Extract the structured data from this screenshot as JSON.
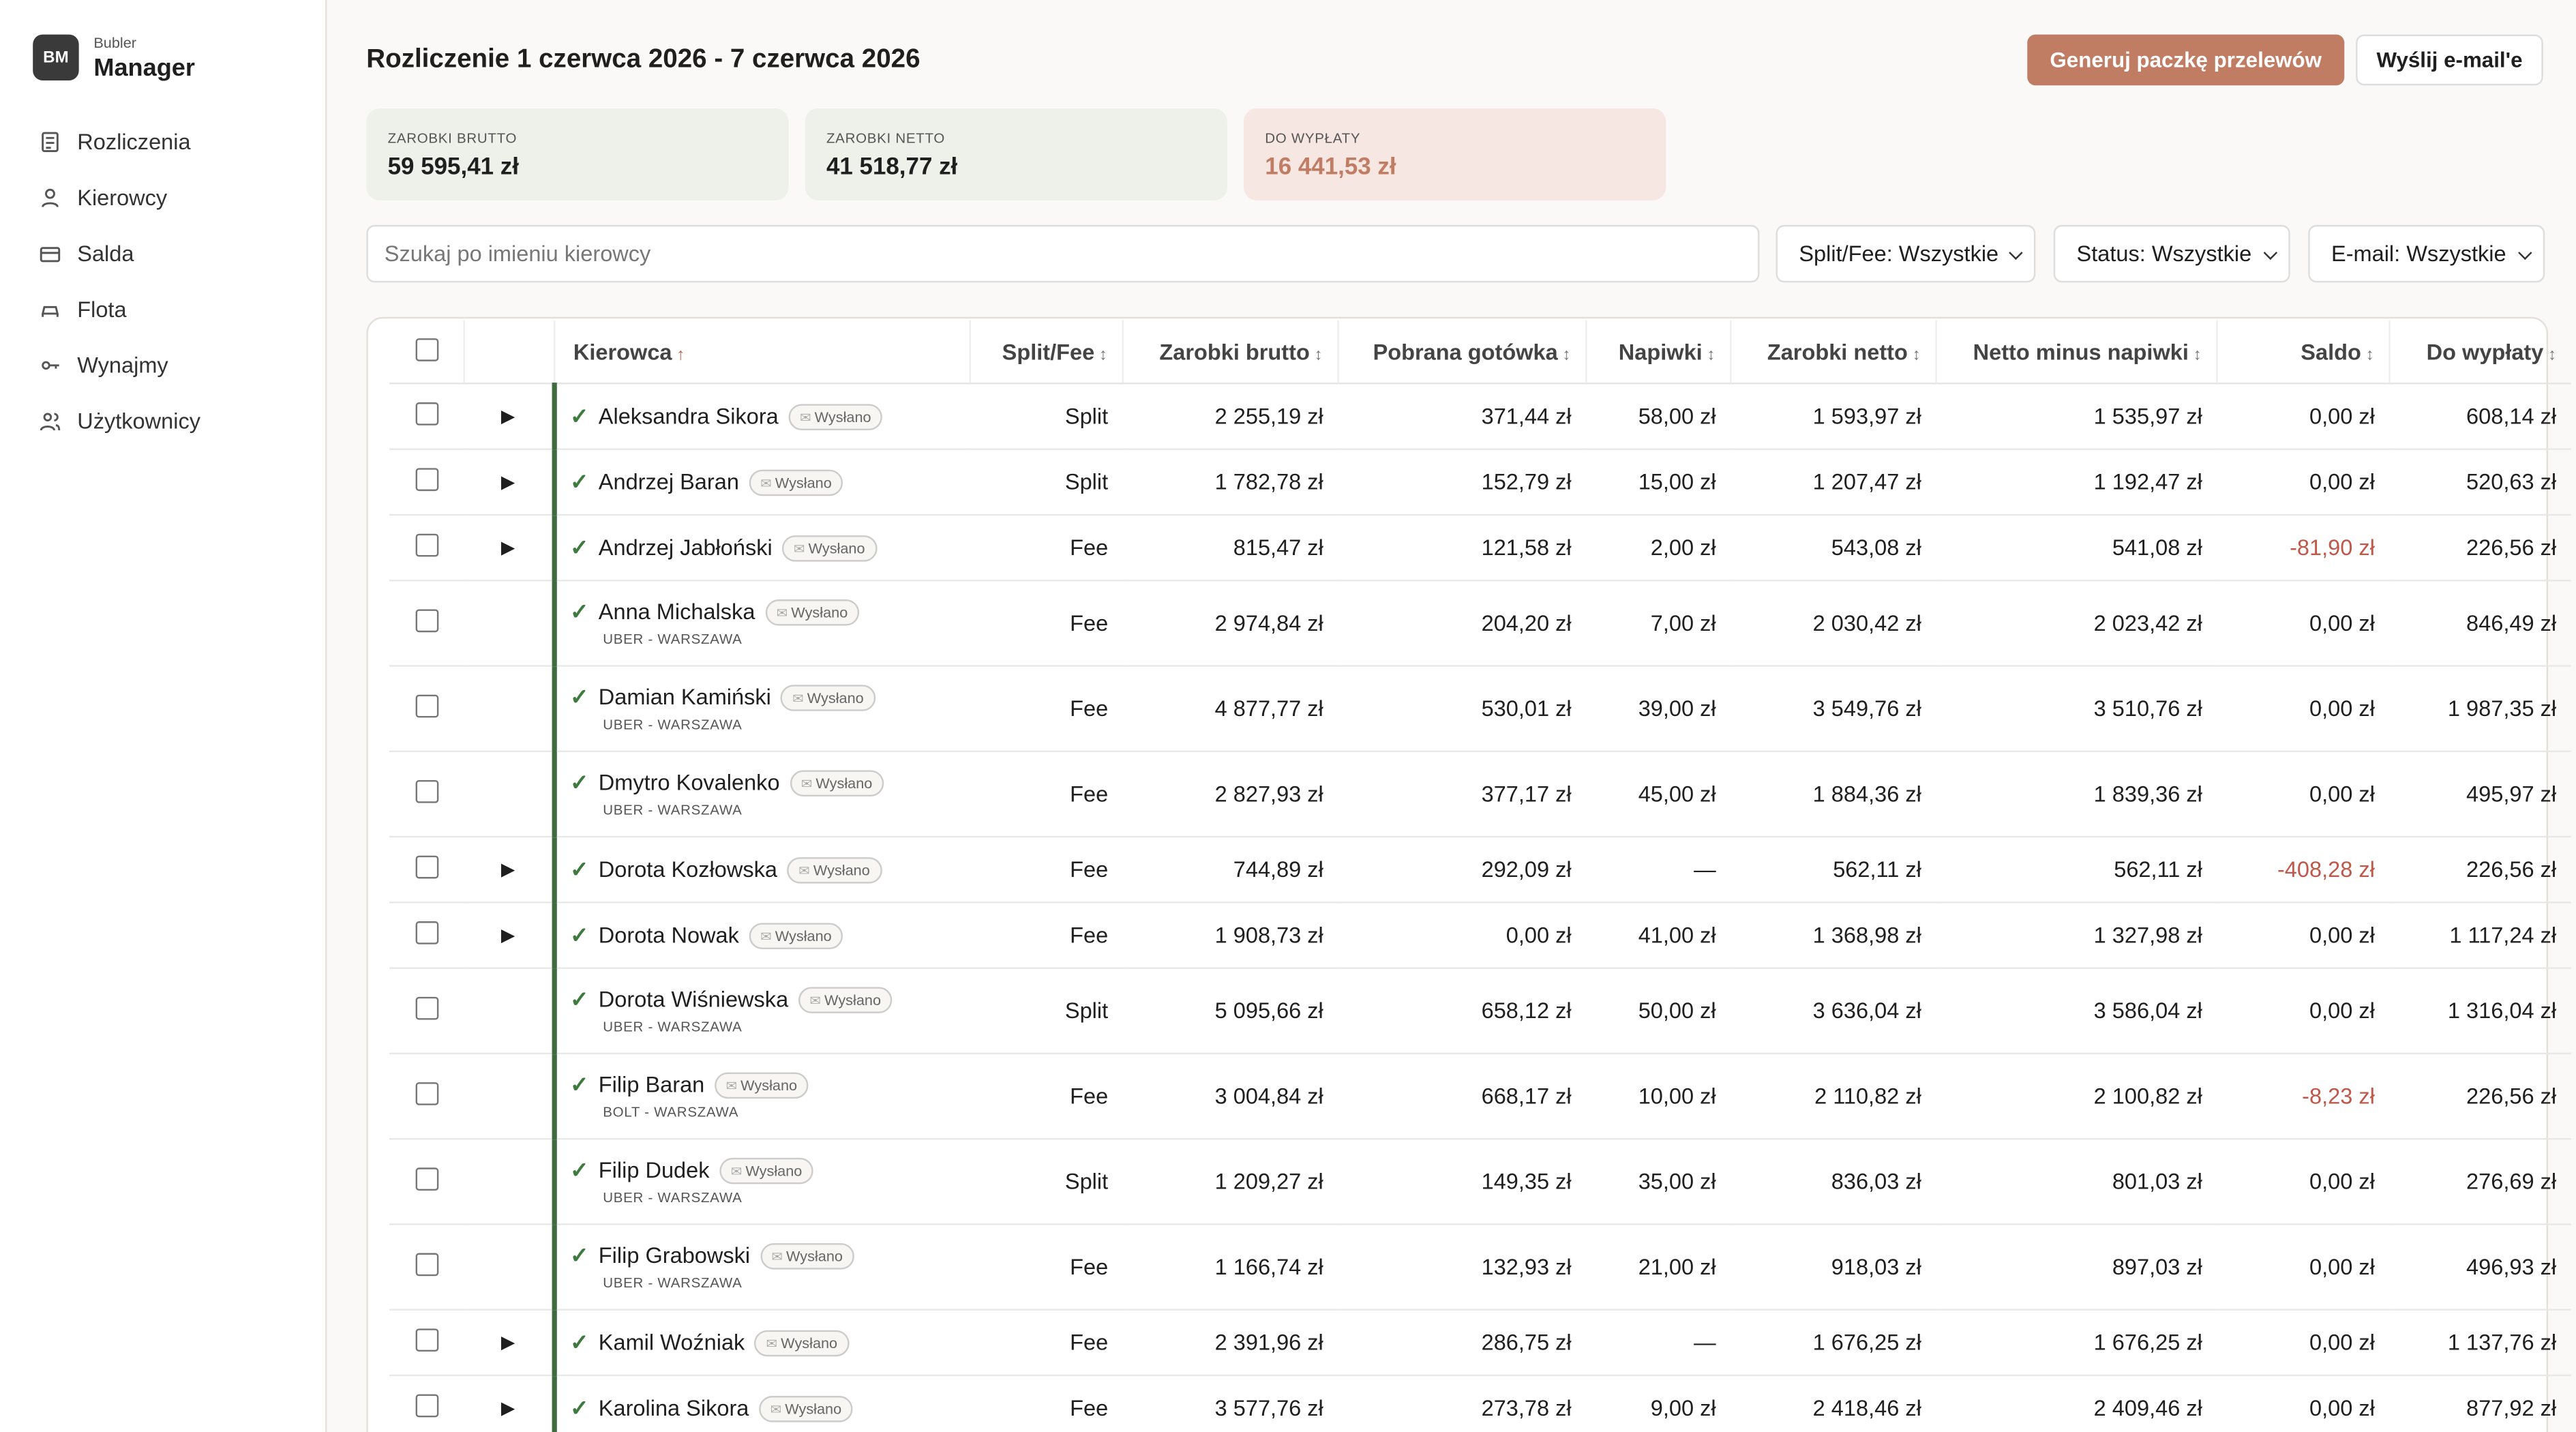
{
  "sidebar": {
    "brand_logo": "BM",
    "brand_small": "Bubler",
    "brand_name": "Manager",
    "nav": [
      "Rozliczenia",
      "Kierowcy",
      "Salda",
      "Flota",
      "Wynajmy",
      "Użytkownicy"
    ]
  },
  "header": {
    "title": "Rozliczenie 1 czerwca 2026 - 7 czerwca 2026",
    "buttons": [
      "Generuj paczkę przelewów",
      "Wyślij e-mail'e"
    ]
  },
  "stats": [
    {
      "label": "ZAROBKI BRUTTO",
      "value": "59 595,41 zł"
    },
    {
      "label": "ZAROBKI NETTO",
      "value": "41 518,77 zł"
    },
    {
      "label": "DO WYPŁATY",
      "value": "16 441,53 zł"
    }
  ],
  "filters": {
    "search_placeholder": "Szukaj po imieniu kierowcy",
    "selects": [
      "Split/Fee: Wszystkie",
      "Status: Wszystkie",
      "E-mail: Wszystkie"
    ]
  },
  "table": {
    "columns": [
      "Kierowca",
      "Split/Fee",
      "Zarobki brutto",
      "Pobrana gotówka",
      "Napiwki",
      "Zarobki netto",
      "Netto minus napiwki",
      "Saldo",
      "Do wypłaty"
    ],
    "rows": [
      {
        "expandable": true,
        "name": "Aleksandra Sikora",
        "badge": "Wysłano",
        "cells": [
          "Split",
          "2 255,19 zł",
          "371,44 zł",
          "58,00 zł",
          "1 593,97 zł",
          "1 535,97 zł",
          "0,00 zł",
          "608,14 zł"
        ]
      },
      {
        "expandable": true,
        "name": "Andrzej Baran",
        "badge": "Wysłano",
        "cells": [
          "Split",
          "1 782,78 zł",
          "152,79 zł",
          "15,00 zł",
          "1 207,47 zł",
          "1 192,47 zł",
          "0,00 zł",
          "520,63 zł"
        ]
      },
      {
        "expandable": true,
        "name": "Andrzej Jabłoński",
        "badge": "Wysłano",
        "cells": [
          "Fee",
          "815,47 zł",
          "121,58 zł",
          "2,00 zł",
          "543,08 zł",
          "541,08 zł",
          "-81,90 zł",
          "226,56 zł"
        ]
      },
      {
        "expandable": false,
        "name": "Anna Michalska",
        "badge": "Wysłano",
        "sub": "UBER - WARSZAWA",
        "cells": [
          "Fee",
          "2 974,84 zł",
          "204,20 zł",
          "7,00 zł",
          "2 030,42 zł",
          "2 023,42 zł",
          "0,00 zł",
          "846,49 zł"
        ]
      },
      {
        "expandable": false,
        "name": "Damian Kamiński",
        "badge": "Wysłano",
        "sub": "UBER - WARSZAWA",
        "cells": [
          "Fee",
          "4 877,77 zł",
          "530,01 zł",
          "39,00 zł",
          "3 549,76 zł",
          "3 510,76 zł",
          "0,00 zł",
          "1 987,35 zł"
        ]
      },
      {
        "expandable": false,
        "name": "Dmytro Kovalenko",
        "badge": "Wysłano",
        "sub": "UBER - WARSZAWA",
        "cells": [
          "Fee",
          "2 827,93 zł",
          "377,17 zł",
          "45,00 zł",
          "1 884,36 zł",
          "1 839,36 zł",
          "0,00 zł",
          "495,97 zł"
        ]
      },
      {
        "expandable": true,
        "name": "Dorota Kozłowska",
        "badge": "Wysłano",
        "cells": [
          "Fee",
          "744,89 zł",
          "292,09 zł",
          "—",
          "562,11 zł",
          "562,11 zł",
          "-408,28 zł",
          "226,56 zł"
        ]
      },
      {
        "expandable": true,
        "name": "Dorota Nowak",
        "badge": "Wysłano",
        "cells": [
          "Fee",
          "1 908,73 zł",
          "0,00 zł",
          "41,00 zł",
          "1 368,98 zł",
          "1 327,98 zł",
          "0,00 zł",
          "1 117,24 zł"
        ]
      },
      {
        "expandable": false,
        "name": "Dorota Wiśniewska",
        "badge": "Wysłano",
        "sub": "UBER - WARSZAWA",
        "cells": [
          "Split",
          "5 095,66 zł",
          "658,12 zł",
          "50,00 zł",
          "3 636,04 zł",
          "3 586,04 zł",
          "0,00 zł",
          "1 316,04 zł"
        ]
      },
      {
        "expandable": false,
        "name": "Filip Baran",
        "badge": "Wysłano",
        "sub": "BOLT - WARSZAWA",
        "cells": [
          "Fee",
          "3 004,84 zł",
          "668,17 zł",
          "10,00 zł",
          "2 110,82 zł",
          "2 100,82 zł",
          "-8,23 zł",
          "226,56 zł"
        ]
      },
      {
        "expandable": false,
        "name": "Filip Dudek",
        "badge": "Wysłano",
        "sub": "UBER - WARSZAWA",
        "cells": [
          "Split",
          "1 209,27 zł",
          "149,35 zł",
          "35,00 zł",
          "836,03 zł",
          "801,03 zł",
          "0,00 zł",
          "276,69 zł"
        ]
      },
      {
        "expandable": false,
        "name": "Filip Grabowski",
        "badge": "Wysłano",
        "sub": "UBER - WARSZAWA",
        "cells": [
          "Fee",
          "1 166,74 zł",
          "132,93 zł",
          "21,00 zł",
          "918,03 zł",
          "897,03 zł",
          "0,00 zł",
          "496,93 zł"
        ]
      },
      {
        "expandable": true,
        "name": "Kamil Woźniak",
        "badge": "Wysłano",
        "cells": [
          "Fee",
          "2 391,96 zł",
          "286,75 zł",
          "—",
          "1 676,25 zł",
          "1 676,25 zł",
          "0,00 zł",
          "1 137,76 zł"
        ]
      },
      {
        "expandable": true,
        "name": "Karolina Sikora",
        "badge": "Wysłano",
        "cells": [
          "Fee",
          "3 577,76 zł",
          "273,78 zł",
          "9,00 zł",
          "2 418,46 zł",
          "2 409,46 zł",
          "0,00 zł",
          "877,92 zł"
        ]
      }
    ]
  }
}
